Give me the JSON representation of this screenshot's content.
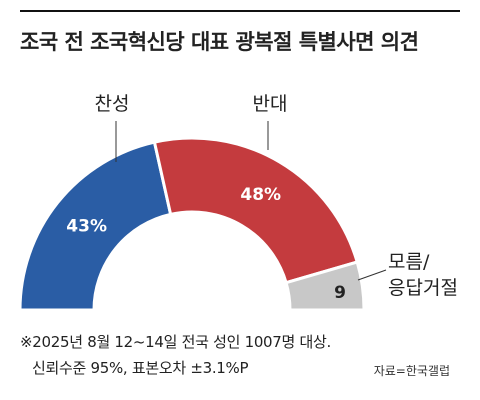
{
  "title": "조국 전 조국혁신당 대표 광복절 특별사면 의견",
  "chart_data": {
    "type": "pie",
    "style": "half-donut",
    "categories": [
      "찬성",
      "반대",
      "모름/응답거절"
    ],
    "category_lines": [
      [
        "찬성"
      ],
      [
        "반대"
      ],
      [
        "모름/",
        "응답거절"
      ]
    ],
    "values": [
      43,
      48,
      9
    ],
    "value_labels": [
      "43%",
      "48%",
      "9"
    ],
    "colors": [
      "#2a5da5",
      "#c43b3e",
      "#c8c8c8"
    ]
  },
  "footnote": {
    "line1": "※2025년 8월 12~14일 전국 성인 1007명 대상.",
    "line2": "신뢰수준 95%, 표본오차 ±3.1%P"
  },
  "source": "자료=한국갤럽"
}
